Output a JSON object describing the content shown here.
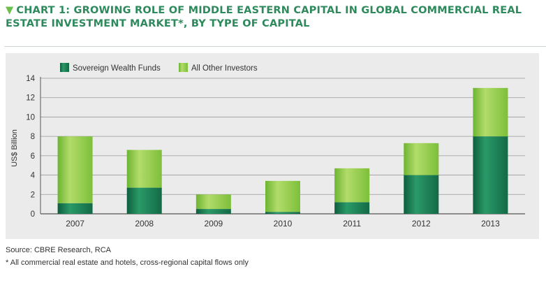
{
  "header": {
    "title": "CHART 1: GROWING ROLE OF MIDDLE EASTERN CAPITAL IN GLOBAL COMMERCIAL REAL ESTATE INVESTMENT MARKET*, BY TYPE OF CAPITAL"
  },
  "chart_data": {
    "type": "bar",
    "stacked": true,
    "categories": [
      "2007",
      "2008",
      "2009",
      "2010",
      "2011",
      "2012",
      "2013"
    ],
    "series": [
      {
        "name": "Sovereign Wealth Funds",
        "values": [
          1.1,
          2.7,
          0.5,
          0.2,
          1.2,
          4.0,
          8.0
        ],
        "color": "#1c7a52"
      },
      {
        "name": "All Other Investors",
        "values": [
          6.9,
          3.9,
          1.5,
          3.2,
          3.5,
          3.3,
          5.0
        ],
        "color": "#8fca3e"
      }
    ],
    "ylabel": "US$ Billion",
    "ylim": [
      0,
      14
    ],
    "yticks": [
      "0",
      "2",
      "4",
      "6",
      "8",
      "10",
      "12",
      "14"
    ],
    "grid": true,
    "legend": "top-left"
  },
  "notes": {
    "source": "Source: CBRE Research, RCA",
    "footnote": "* All commercial real estate and hotels, cross-regional capital flows only"
  }
}
